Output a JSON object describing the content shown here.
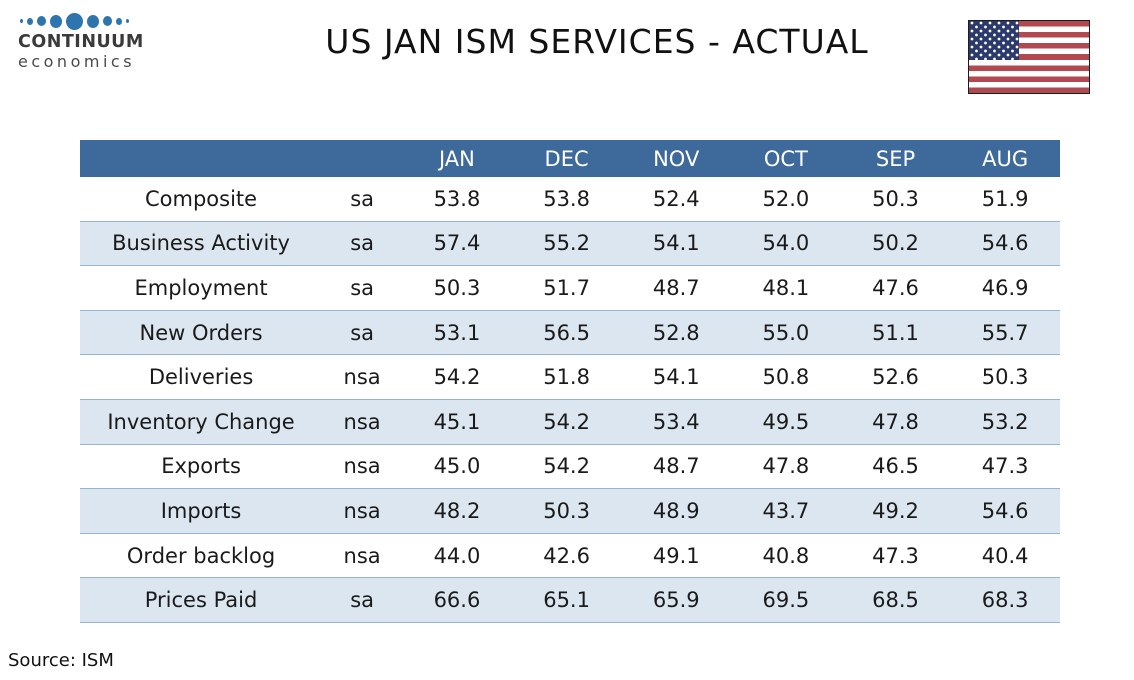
{
  "brand": {
    "name_top": "CONTINUUM",
    "name_bottom": "economics"
  },
  "chart_data": {
    "type": "table",
    "title": "US JAN ISM SERVICES - ACTUAL",
    "column_headers": [
      "",
      "",
      "JAN",
      "DEC",
      "NOV",
      "OCT",
      "SEP",
      "AUG"
    ],
    "rows": [
      {
        "indicator": "Composite",
        "adjustment": "sa",
        "values": [
          "53.8",
          "53.8",
          "52.4",
          "52.0",
          "50.3",
          "51.9"
        ]
      },
      {
        "indicator": "Business Activity",
        "adjustment": "sa",
        "values": [
          "57.4",
          "55.2",
          "54.1",
          "54.0",
          "50.2",
          "54.6"
        ]
      },
      {
        "indicator": "Employment",
        "adjustment": "sa",
        "values": [
          "50.3",
          "51.7",
          "48.7",
          "48.1",
          "47.6",
          "46.9"
        ]
      },
      {
        "indicator": "New Orders",
        "adjustment": "sa",
        "values": [
          "53.1",
          "56.5",
          "52.8",
          "55.0",
          "51.1",
          "55.7"
        ]
      },
      {
        "indicator": "Deliveries",
        "adjustment": "nsa",
        "values": [
          "54.2",
          "51.8",
          "54.1",
          "50.8",
          "52.6",
          "50.3"
        ]
      },
      {
        "indicator": "Inventory Change",
        "adjustment": "nsa",
        "values": [
          "45.1",
          "54.2",
          "53.4",
          "49.5",
          "47.8",
          "53.2"
        ]
      },
      {
        "indicator": "Exports",
        "adjustment": "nsa",
        "values": [
          "45.0",
          "54.2",
          "48.7",
          "47.8",
          "46.5",
          "47.3"
        ]
      },
      {
        "indicator": "Imports",
        "adjustment": "nsa",
        "values": [
          "48.2",
          "50.3",
          "48.9",
          "43.7",
          "49.2",
          "54.6"
        ]
      },
      {
        "indicator": "Order backlog",
        "adjustment": "nsa",
        "values": [
          "44.0",
          "42.6",
          "49.1",
          "40.8",
          "47.3",
          "40.4"
        ]
      },
      {
        "indicator": "Prices Paid",
        "adjustment": "sa",
        "values": [
          "66.6",
          "65.1",
          "65.9",
          "69.5",
          "68.5",
          "68.3"
        ]
      }
    ]
  },
  "footer": {
    "source_label": "Source: ISM"
  },
  "colors": {
    "table_header_bg": "#3e6a9b",
    "table_band_row_bg": "#dce6f1",
    "table_row_border": "#95b3d7",
    "logo_dot_blue": "#2e74ae",
    "flag_red": "#b04a50",
    "flag_navy": "#2b3a6b"
  }
}
